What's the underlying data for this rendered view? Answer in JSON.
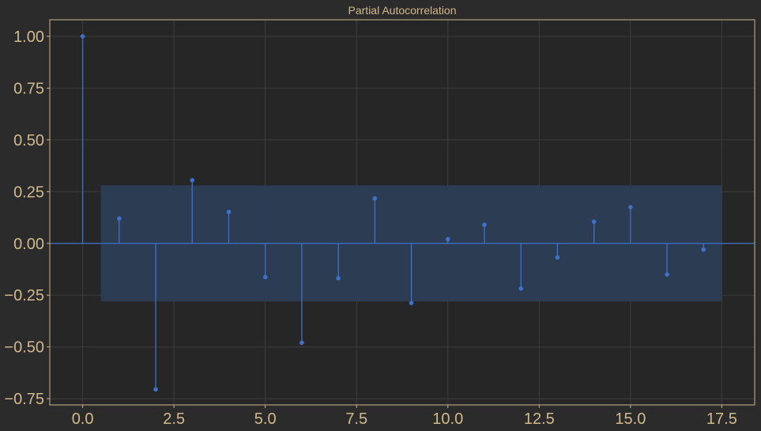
{
  "chart_data": {
    "type": "stem",
    "title": "Partial Autocorrelation",
    "xlabel": "",
    "ylabel": "",
    "xlim": [
      -0.9,
      18.4
    ],
    "ylim": [
      -0.78,
      1.08
    ],
    "x_ticks": [
      0.0,
      2.5,
      5.0,
      7.5,
      10.0,
      12.5,
      15.0,
      17.5
    ],
    "x_tick_labels": [
      "0.0",
      "2.5",
      "5.0",
      "7.5",
      "10.0",
      "12.5",
      "15.0",
      "17.5"
    ],
    "y_ticks": [
      1.0,
      0.75,
      0.5,
      0.25,
      0.0,
      -0.25,
      -0.5,
      -0.75
    ],
    "y_tick_labels": [
      "1.00",
      "0.75",
      "0.50",
      "0.25",
      "0.00",
      "−0.25",
      "−0.50",
      "−0.75"
    ],
    "grid": true,
    "confidence_band": {
      "x_start": 0.5,
      "x_end": 17.5,
      "lower": -0.28,
      "upper": 0.28
    },
    "lags": [
      0,
      1,
      2,
      3,
      4,
      5,
      6,
      7,
      8,
      9,
      10,
      11,
      12,
      13,
      14,
      15,
      16,
      17
    ],
    "values": [
      1.0,
      0.12,
      -0.705,
      0.305,
      0.152,
      -0.163,
      -0.48,
      -0.168,
      0.217,
      -0.288,
      0.02,
      0.09,
      -0.218,
      -0.068,
      0.105,
      0.175,
      -0.15,
      -0.03
    ],
    "colors": {
      "background": "#2b2b2b",
      "plot_bg": "#262626",
      "grid": "#3c3c3c",
      "frame": "#cdb58a",
      "stem": "#3d72c8",
      "band": "#2c3d55",
      "text": "#d2b98c"
    }
  }
}
